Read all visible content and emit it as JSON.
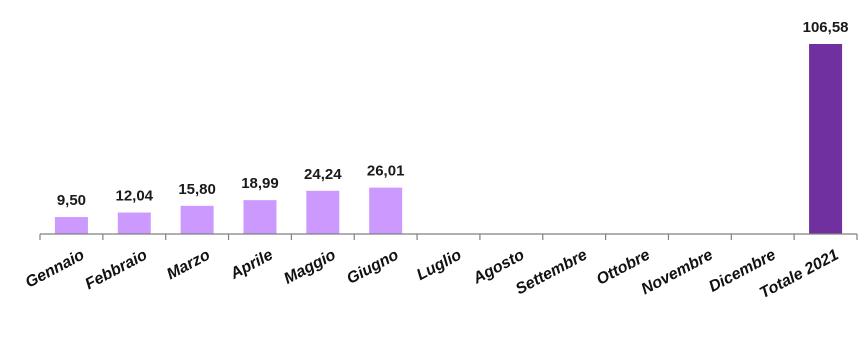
{
  "chart_data": {
    "type": "bar",
    "categories": [
      "Gennaio",
      "Febbraio",
      "Marzo",
      "Aprile",
      "Maggio",
      "Giugno",
      "Luglio",
      "Agosto",
      "Settembre",
      "Ottobre",
      "Novembre",
      "Dicembre",
      "Totale 2021"
    ],
    "values": [
      9.5,
      12.04,
      15.8,
      18.99,
      24.24,
      26.01,
      null,
      null,
      null,
      null,
      null,
      null,
      106.58
    ],
    "value_labels": [
      "9,50",
      "12,04",
      "15,80",
      "18,99",
      "24,24",
      "26,01",
      "",
      "",
      "",
      "",
      "",
      "",
      "106,58"
    ],
    "ylim": [
      0,
      106.58
    ],
    "grid": false,
    "colors": {
      "monthly_bar": "#cc99ff",
      "total_bar": "#7030a0",
      "axis": "#808080"
    }
  }
}
